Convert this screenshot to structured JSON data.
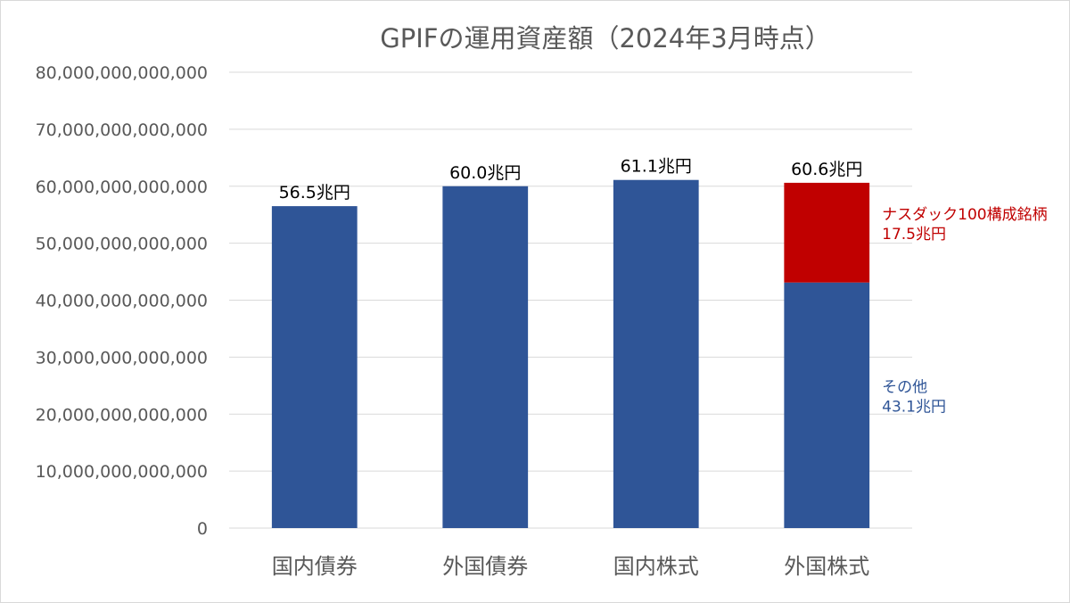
{
  "chart_data": {
    "type": "bar",
    "stacked": true,
    "title": "GPIFの運用資産額（2024年3月時点）",
    "xlabel": "",
    "ylabel": "",
    "ylim": [
      0,
      80000000000000
    ],
    "grid": true,
    "legend": "none",
    "categories": [
      "国内債券",
      "外国債券",
      "国内株式",
      "外国株式"
    ],
    "y_ticks": [
      0,
      10000000000000,
      20000000000000,
      30000000000000,
      40000000000000,
      50000000000000,
      60000000000000,
      70000000000000,
      80000000000000
    ],
    "y_tick_labels": [
      "0",
      "10,000,000,000,000",
      "20,000,000,000,000",
      "30,000,000,000,000",
      "40,000,000,000,000",
      "50,000,000,000,000",
      "60,000,000,000,000",
      "70,000,000,000,000",
      "80,000,000,000,000"
    ],
    "series": [
      {
        "values": [
          56500000000000,
          60000000000000,
          61100000000000,
          43100000000000
        ],
        "color": "#2F5597"
      },
      {
        "values": [
          0,
          0,
          0,
          17500000000000
        ],
        "color": "#C00000"
      }
    ],
    "data_labels": [
      "56.5兆円",
      "60.0兆円",
      "61.1兆円",
      "60.6兆円"
    ],
    "annotations": [
      {
        "category": "外国株式",
        "series": 1,
        "lines": [
          "ナスダック100構成銘柄",
          "17.5兆円"
        ],
        "color": "#C00000"
      },
      {
        "category": "外国株式",
        "series": 0,
        "lines": [
          "その他",
          "43.1兆円"
        ],
        "color": "#2F5597"
      }
    ],
    "colors": {
      "gridline": "#D9D9D9",
      "text": "#595959"
    }
  }
}
